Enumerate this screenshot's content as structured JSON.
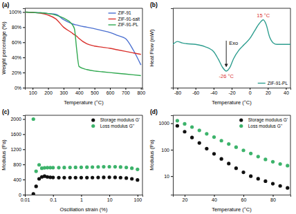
{
  "chart_data": [
    {
      "type": "line",
      "title": "(a)",
      "x_label": "Temperature (°C)",
      "y_label": "Weight percentage (%)",
      "x": [
        50,
        100,
        150,
        200,
        250,
        300,
        350,
        370,
        385,
        400,
        450,
        500,
        550,
        600,
        650,
        700,
        750,
        800
      ],
      "series": [
        {
          "name": "ZIF-91",
          "color": "#4a6fd0",
          "values": [
            100,
            99.5,
            99,
            98,
            97,
            90,
            85,
            83.5,
            83,
            82,
            80,
            78,
            75.5,
            73,
            69,
            65,
            50,
            30
          ]
        },
        {
          "name": "ZIF-91-salt",
          "color": "#d9302c",
          "values": [
            100,
            99.5,
            98.5,
            96,
            91,
            80,
            73,
            70,
            68,
            65,
            58,
            55,
            53.5,
            52,
            50,
            48,
            46,
            44
          ]
        },
        {
          "name": "ZIF-91-PL",
          "color": "#2fa84f",
          "values": [
            100,
            99.5,
            99,
            98,
            96,
            92,
            85,
            78,
            50,
            28,
            24,
            22,
            21,
            20,
            19,
            18,
            17,
            16
          ]
        }
      ],
      "xlim": [
        50,
        810
      ],
      "xticks": [
        100,
        200,
        300,
        400,
        500,
        600,
        700,
        800
      ],
      "ylim": [
        0,
        105
      ],
      "yticks": [
        {
          "value": 0,
          "label": "0%"
        },
        {
          "value": 20,
          "label": "20%"
        },
        {
          "value": 40,
          "label": "40%"
        },
        {
          "value": 60,
          "label": "60%"
        },
        {
          "value": 80,
          "label": "80%"
        },
        {
          "value": 100,
          "label": "100%"
        }
      ],
      "legend": "upper right"
    },
    {
      "type": "line",
      "title": "(b)",
      "x_label": "Temperature (°C)",
      "y_label": "Heat Flow (mW)",
      "x": [
        -85,
        -80,
        -75,
        -70,
        -60,
        -50,
        -40,
        -35,
        -30,
        -26,
        -22,
        -18,
        -12,
        -6,
        0,
        5,
        10,
        15,
        18,
        22,
        26,
        30,
        35,
        40,
        45
      ],
      "series": [
        {
          "name": "ZIF-91-PL",
          "color": "#2e9e8f",
          "values": [
            6.0,
            6.4,
            6.2,
            6.1,
            6.0,
            5.7,
            5.0,
            4.0,
            2.8,
            2.3,
            2.8,
            4.0,
            5.2,
            6.0,
            6.8,
            7.8,
            8.8,
            9.4,
            8.8,
            7.0,
            6.2,
            6.0,
            6.0,
            6.0,
            6.0
          ]
        }
      ],
      "xlim": [
        -85,
        45
      ],
      "xticks": [
        -80,
        -60,
        -40,
        -20,
        0,
        20,
        40
      ],
      "ylim": [
        0,
        11
      ],
      "yticks": [],
      "tick_labels": "x",
      "annotations": [
        "-26 °C",
        "15 °C",
        "Exo"
      ],
      "legend": "lower right"
    },
    {
      "type": "scatter",
      "title": "(c)",
      "x_label": "Oscillation strain (%)",
      "y_label": "Modulus (Pa)",
      "x": [
        0.02,
        0.025,
        0.032,
        0.04,
        0.05,
        0.063,
        0.08,
        0.1,
        0.16,
        0.25,
        0.4,
        0.63,
        1,
        1.6,
        2.5,
        4,
        6.3,
        10,
        16,
        25,
        40,
        63,
        100
      ],
      "series": [
        {
          "name": "Storage modulus G'",
          "color": "#111111",
          "values": [
            20,
            220,
            420,
            470,
            490,
            470,
            460,
            455,
            450,
            450,
            450,
            450,
            450,
            450,
            452,
            455,
            458,
            460,
            458,
            452,
            440,
            420,
            390
          ]
        },
        {
          "name": "Loss modulus G''",
          "color": "#3db36b",
          "values": [
            2000,
            620,
            790,
            700,
            710,
            715,
            715,
            715,
            715,
            718,
            720,
            722,
            725,
            728,
            730,
            735,
            738,
            740,
            738,
            732,
            720,
            700,
            670
          ]
        }
      ],
      "log": "x",
      "xlim": [
        0.01,
        150
      ],
      "xticks": [
        0.01,
        0.1,
        1,
        10,
        100
      ],
      "ylim": [
        0,
        2100
      ],
      "yticks": [
        0,
        400,
        800,
        1200,
        1600,
        2000
      ],
      "legend": "upper right"
    },
    {
      "type": "scatter",
      "title": "(d)",
      "x_label": "Temperature (°C)",
      "y_label": "Modulus (Pa)",
      "x": [
        15,
        20,
        25,
        30,
        35,
        40,
        45,
        50,
        55,
        60,
        65,
        70,
        75,
        80,
        85,
        90
      ],
      "series": [
        {
          "name": "Storage modulus G'",
          "color": "#111111",
          "values": [
            800,
            480,
            290,
            180,
            110,
            70,
            45,
            30,
            20,
            14,
            10,
            8,
            6.5,
            5.2,
            4.3,
            3.6
          ]
        },
        {
          "name": "Loss modulus G''",
          "color": "#3db36b",
          "values": [
            1250,
            950,
            720,
            540,
            400,
            300,
            220,
            165,
            125,
            95,
            72,
            55,
            43,
            35,
            29,
            25
          ]
        }
      ],
      "log": "y",
      "xlim": [
        12,
        92
      ],
      "xticks": [
        20,
        40,
        60,
        80
      ],
      "ylim": [
        2,
        2000
      ],
      "yticks": [
        10,
        100,
        1000
      ],
      "legend": "upper right"
    }
  ]
}
